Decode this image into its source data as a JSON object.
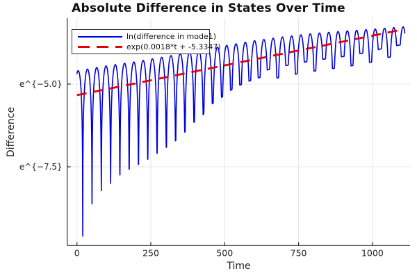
{
  "title": "Absolute Difference in States Over Time",
  "xlabel": "Time",
  "ylabel": "Difference",
  "legend": {
    "position": "top-left",
    "entries": [
      {
        "label": "ln(difference in mode1)",
        "color": "#0000dd",
        "style": "solid"
      },
      {
        "label": "exp(0.0018*t + -5.3347)",
        "color": "#e60000",
        "style": "dashed"
      }
    ]
  },
  "colors": {
    "series_blue": "#0000dd",
    "series_red": "#e60000",
    "grid": "#e6e6e6",
    "axis": "#2b2b2b",
    "text": "#1f1f1f"
  },
  "chart_data": {
    "type": "line",
    "yscale": "log-e",
    "grid": true,
    "xlim": [
      -33,
      1127
    ],
    "ylim_ln": [
      -9.9,
      -3.0
    ],
    "x_ticks": [
      0,
      250,
      500,
      750,
      1000
    ],
    "y_ticks": [
      {
        "label": "e^{−5.0}",
        "value_ln": -5.0
      },
      {
        "label": "e^{−7.5}",
        "value_ln": -7.5
      }
    ],
    "series": [
      {
        "name": "ln(difference in mode1)",
        "style": "solid",
        "color": "#0000dd",
        "shape": "abs-cosine oscillation on log scale: rounded arches with sharp downward spikes at zero crossings; spikes very deep early, shallow late",
        "t_range": [
          0,
          1110
        ],
        "omega_rad_per_t": 0.1,
        "phase_rad": -0.4,
        "peak_envelope_ln": [
          [
            0,
            -4.6
          ],
          [
            100,
            -4.45
          ],
          [
            200,
            -4.32
          ],
          [
            300,
            -4.17
          ],
          [
            400,
            -4.0
          ],
          [
            500,
            -3.84
          ],
          [
            600,
            -3.69
          ],
          [
            700,
            -3.57
          ],
          [
            800,
            -3.47
          ],
          [
            900,
            -3.4
          ],
          [
            1000,
            -3.34
          ],
          [
            1120,
            -3.26
          ]
        ],
        "dip_floor_ln": [
          [
            15,
            -9.75
          ],
          [
            48,
            -8.66
          ],
          [
            80,
            -8.24
          ],
          [
            110,
            -8.03
          ],
          [
            145,
            -7.75
          ],
          [
            175,
            -7.58
          ],
          [
            208,
            -7.43
          ],
          [
            240,
            -7.27
          ],
          [
            270,
            -7.1
          ],
          [
            300,
            -6.93
          ],
          [
            330,
            -6.74
          ],
          [
            365,
            -6.45
          ],
          [
            390,
            -6.2
          ],
          [
            425,
            -5.95
          ],
          [
            455,
            -5.61
          ],
          [
            490,
            -5.4
          ],
          [
            520,
            -5.19
          ],
          [
            550,
            -5.04
          ],
          [
            580,
            -4.92
          ],
          [
            615,
            -4.81
          ],
          [
            645,
            -4.73
          ],
          [
            675,
            -4.66
          ],
          [
            740,
            -4.54
          ],
          [
            800,
            -4.45
          ],
          [
            915,
            -4.31
          ],
          [
            1000,
            -4.17
          ],
          [
            1055,
            -4.03
          ],
          [
            1115,
            -3.95
          ]
        ]
      },
      {
        "name": "exp(0.0018*t + -5.3347)",
        "style": "dashed",
        "color": "#e60000",
        "fit": {
          "slope_per_t": 0.0018,
          "intercept_ln": -5.3347
        },
        "t_range": [
          0,
          1099
        ]
      }
    ]
  }
}
